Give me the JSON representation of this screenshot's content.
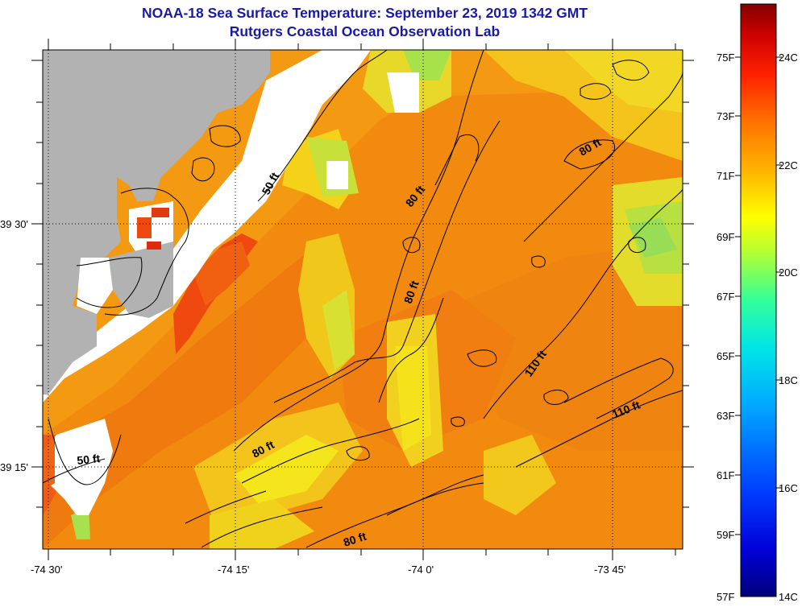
{
  "header": {
    "title": "NOAA-18 Sea Surface Temperature:  September 23, 2019 1342 GMT",
    "subtitle": "Rutgers Coastal Ocean Observation Lab"
  },
  "axes": {
    "lon_labels": [
      "-74 30'",
      "-74 15'",
      "-74 0'",
      "-73 45'"
    ],
    "lat_labels": [
      "39 30'",
      "39 15'"
    ]
  },
  "contours": [
    {
      "label": "50 ft"
    },
    {
      "label": "50 ft"
    },
    {
      "label": "80 ft"
    },
    {
      "label": "80 ft"
    },
    {
      "label": "80 ft"
    },
    {
      "label": "80 ft"
    },
    {
      "label": "80 ft"
    },
    {
      "label": "110 ft"
    },
    {
      "label": "110 ft"
    }
  ],
  "colorbar": {
    "fahrenheit": [
      "75F",
      "73F",
      "71F",
      "69F",
      "67F",
      "65F",
      "63F",
      "61F",
      "59F",
      "57F"
    ],
    "celsius": [
      "24C",
      "22C",
      "20C",
      "18C",
      "16C",
      "14C"
    ],
    "range_c": [
      14,
      25
    ],
    "colors": [
      "#00007a",
      "#0000d9",
      "#0040ff",
      "#00a6ff",
      "#00e6e6",
      "#33ff99",
      "#b3ff33",
      "#ffff00",
      "#ffb300",
      "#ff7300",
      "#ff2200",
      "#cc0000",
      "#800000"
    ]
  },
  "palette": {
    "land": "#b2b2b2",
    "no_data": "#ffffff",
    "title_color": "#1a1aa6"
  }
}
